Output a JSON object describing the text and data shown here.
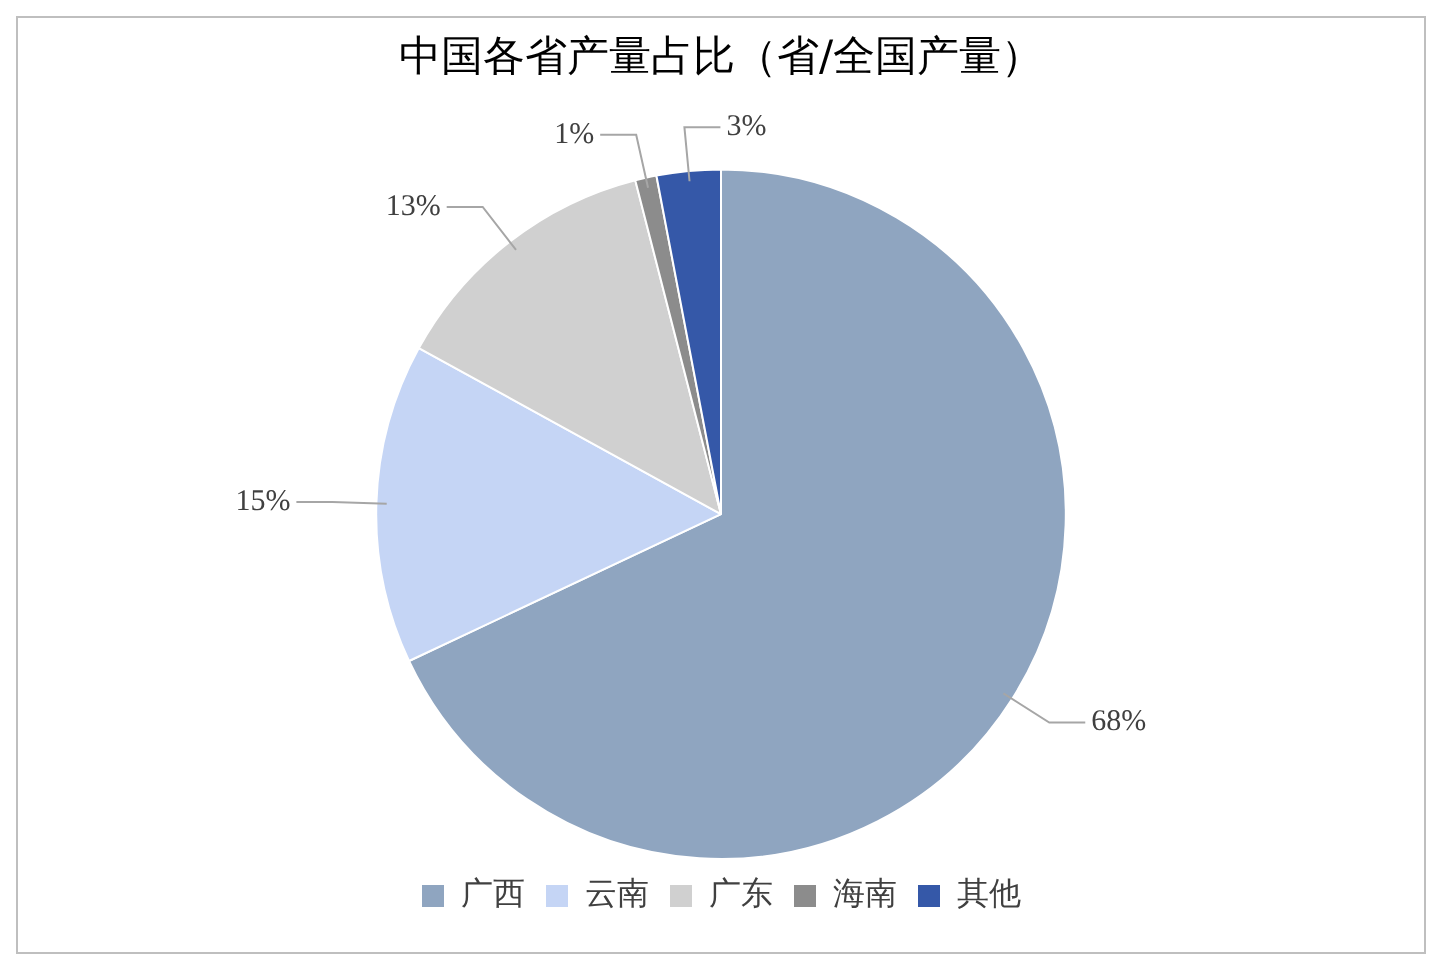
{
  "chart_data": {
    "type": "pie",
    "title": "中国各省产量占比（省/全国产量）",
    "categories": [
      "广西",
      "云南",
      "广东",
      "海南",
      "其他"
    ],
    "values": [
      68,
      15,
      13,
      1,
      3
    ],
    "colors": [
      "#8fa5c0",
      "#c5d5f5",
      "#d0d0d0",
      "#8c8c8c",
      "#3558a8"
    ],
    "value_labels": [
      "68%",
      "15%",
      "13%",
      "1%",
      "3%"
    ],
    "legend": "bottom"
  }
}
